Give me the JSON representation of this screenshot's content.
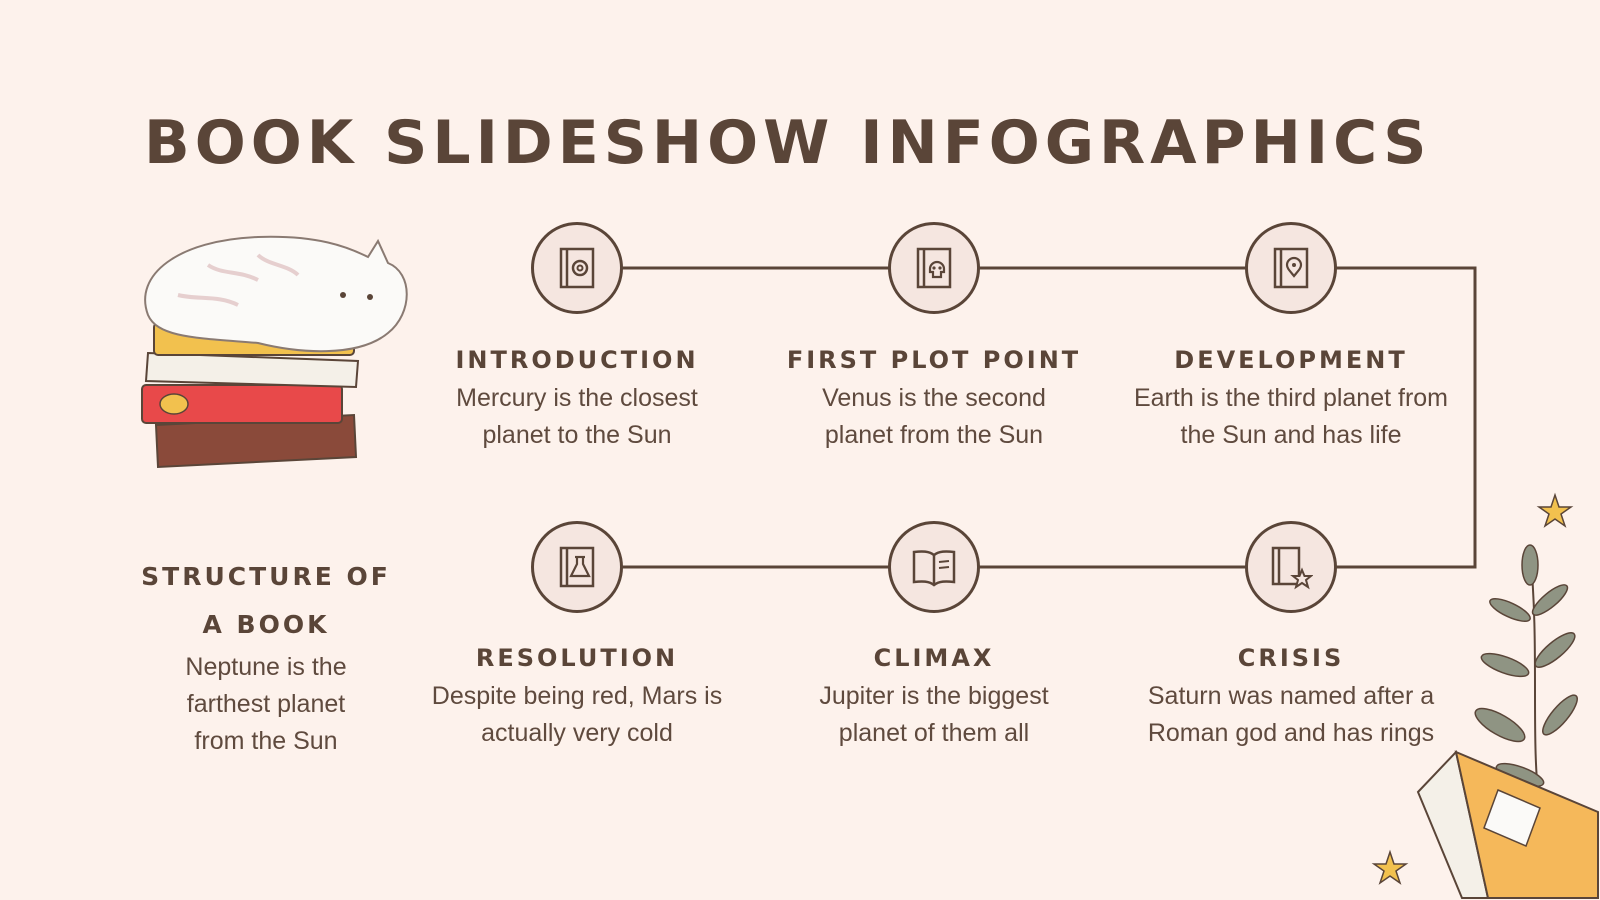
{
  "title": "BOOK SLIDESHOW INFOGRAPHICS",
  "intro": {
    "heading_line1": "STRUCTURE OF",
    "heading_line2": "A BOOK",
    "text": "Neptune is the farthest planet from the Sun"
  },
  "steps": [
    {
      "heading": "INTRODUCTION",
      "text": "Mercury is the closest planet to the Sun",
      "icon": "book-at-icon"
    },
    {
      "heading": "FIRST PLOT POINT",
      "text": "Venus is the second planet from the Sun",
      "icon": "book-skull-icon"
    },
    {
      "heading": "DEVELOPMENT",
      "text": "Earth is the third planet from the Sun and has life",
      "icon": "book-location-icon"
    },
    {
      "heading": "CRISIS",
      "text": "Saturn was named after a Roman god and has rings",
      "icon": "book-star-icon"
    },
    {
      "heading": "CLIMAX",
      "text": "Jupiter is the biggest planet of them all",
      "icon": "open-book-icon"
    },
    {
      "heading": "RESOLUTION",
      "text": "Despite being red, Mars is actually very cold",
      "icon": "book-flask-icon"
    }
  ],
  "colors": {
    "background": "#fdf2ec",
    "ink": "#5a4538",
    "node_fill": "#f5e6e0",
    "star": "#f2c14e",
    "leaf": "#8f9483"
  }
}
